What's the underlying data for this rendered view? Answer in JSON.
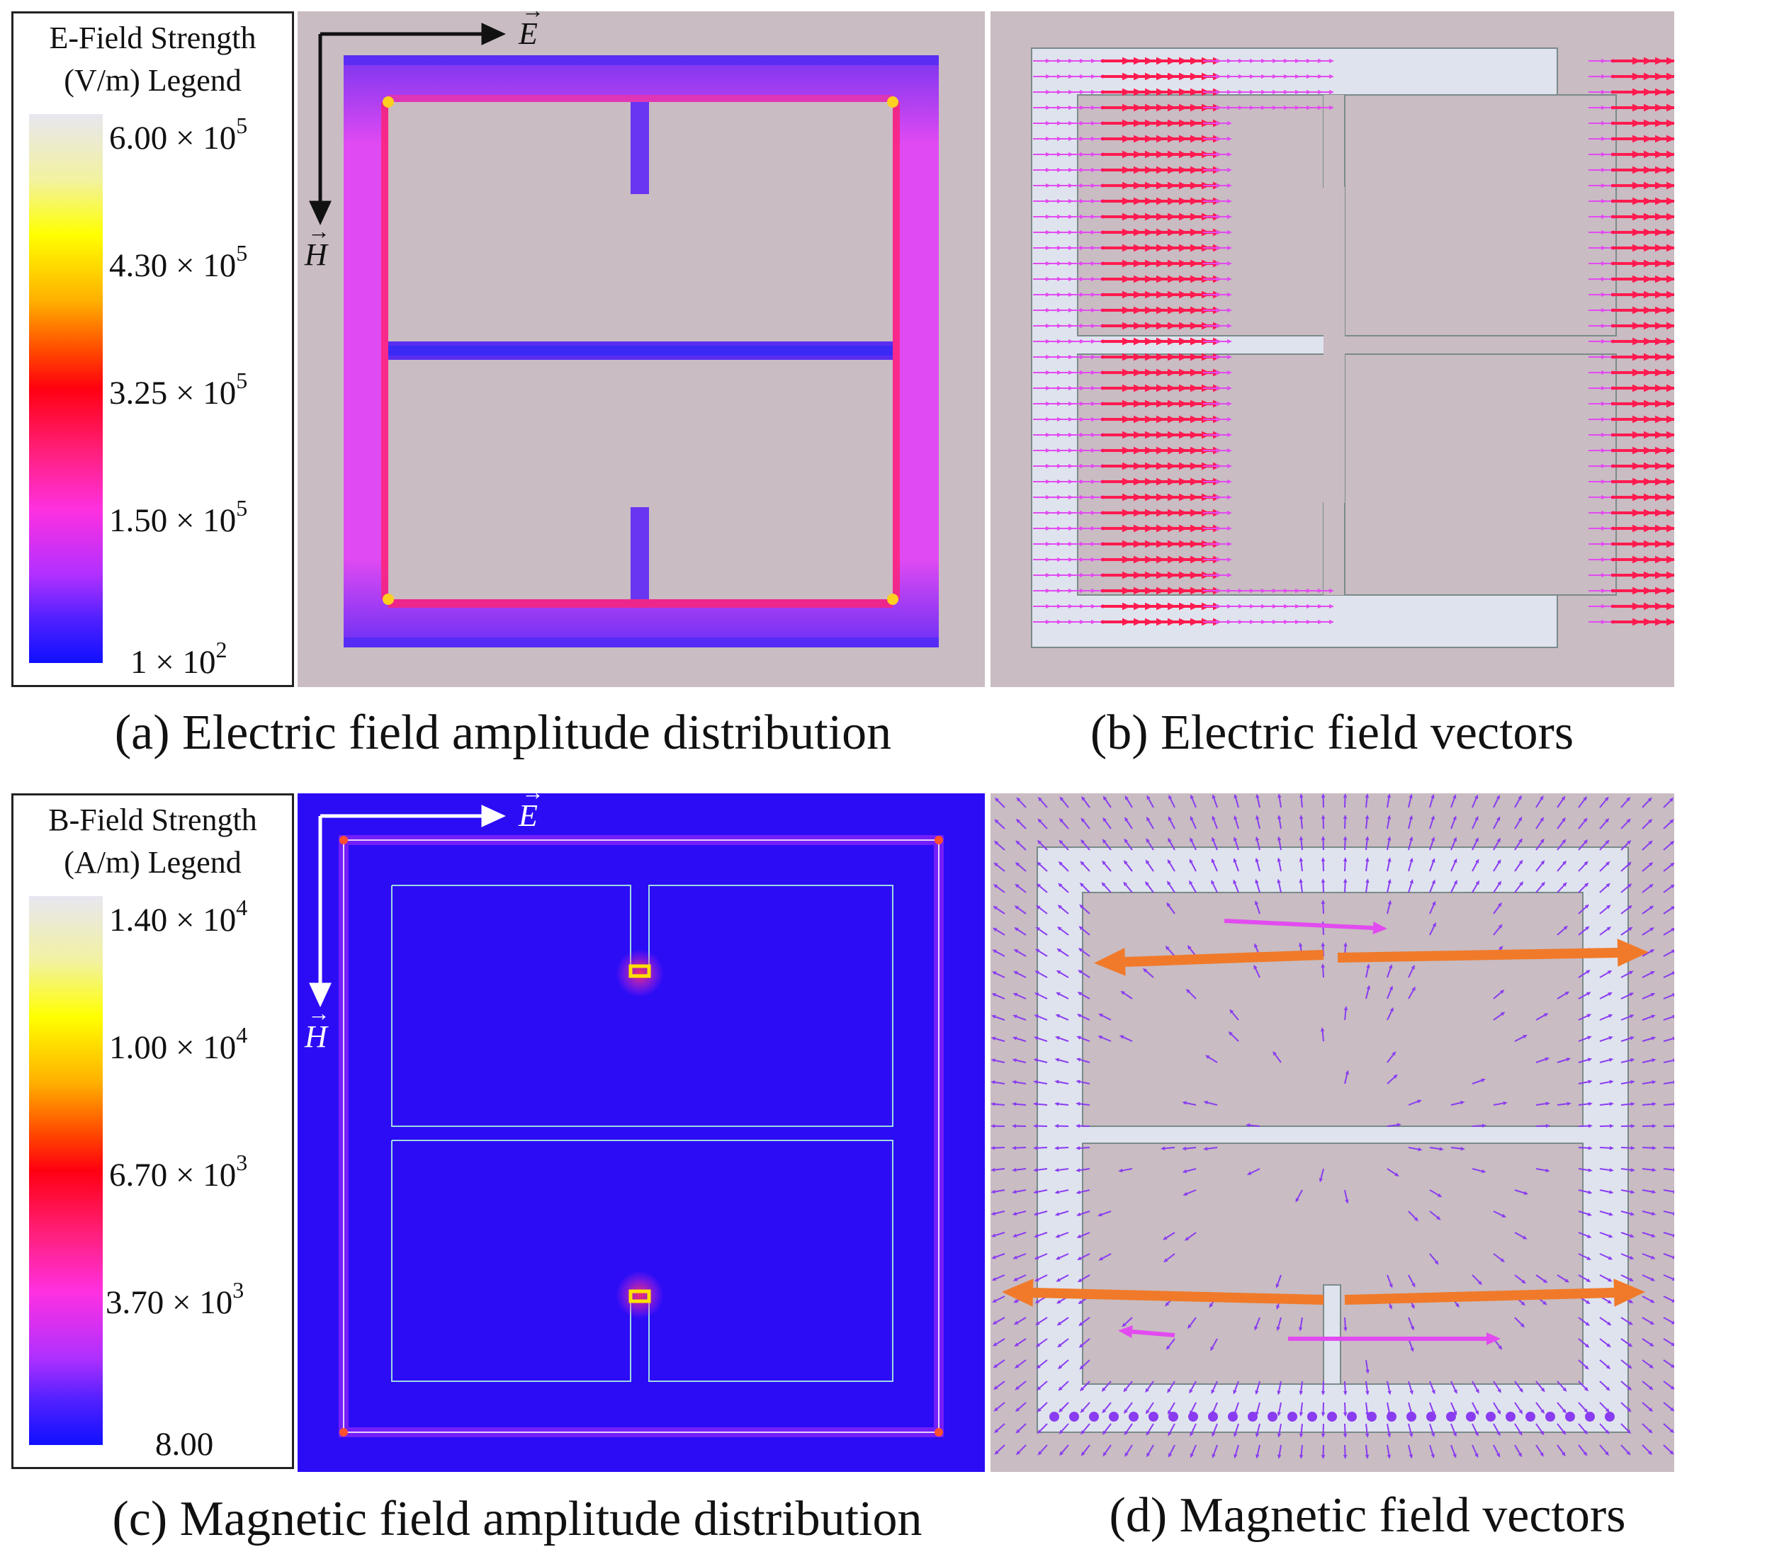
{
  "legend_top": {
    "title_line1": "E-Field Strength",
    "title_line2": "(V/m)  Legend",
    "ticks": [
      {
        "mant": "6.00 × 10",
        "exp": "5"
      },
      {
        "mant": "4.30 × 10",
        "exp": "5"
      },
      {
        "mant": "3.25 × 10",
        "exp": "5"
      },
      {
        "mant": "1.50 × 10",
        "exp": "5"
      },
      {
        "mant": "1 × 10",
        "exp": "2"
      }
    ]
  },
  "legend_bottom": {
    "title_line1": "B-Field Strength",
    "title_line2": "(A/m)  Legend",
    "ticks": [
      {
        "mant": "1.40 × 10",
        "exp": "4"
      },
      {
        "mant": "1.00 × 10",
        "exp": "4"
      },
      {
        "mant": "6.70 × 10",
        "exp": "3"
      },
      {
        "mant": "3.70 × 10",
        "exp": "3"
      },
      {
        "mant": "8.00",
        "exp": ""
      }
    ]
  },
  "axes": {
    "e_label": "E",
    "h_label": "H",
    "vector_accent": "→"
  },
  "captions": {
    "a": "(a) Electric field amplitude distribution",
    "b": "(b) Electric field vectors",
    "c": "(c) Magnetic field amplitude distribution",
    "d": "(d) Magnetic field vectors"
  },
  "colors": {
    "panel_bg": "#c8b9c0",
    "blue_bg": "#2b0cf5",
    "field_magenta": "#e24bf0",
    "field_red": "#ff1a4f",
    "arrow_orange": "#f07a2a",
    "arrow_violet": "#8a3cf0",
    "structure_light": "#dfe3ee"
  }
}
